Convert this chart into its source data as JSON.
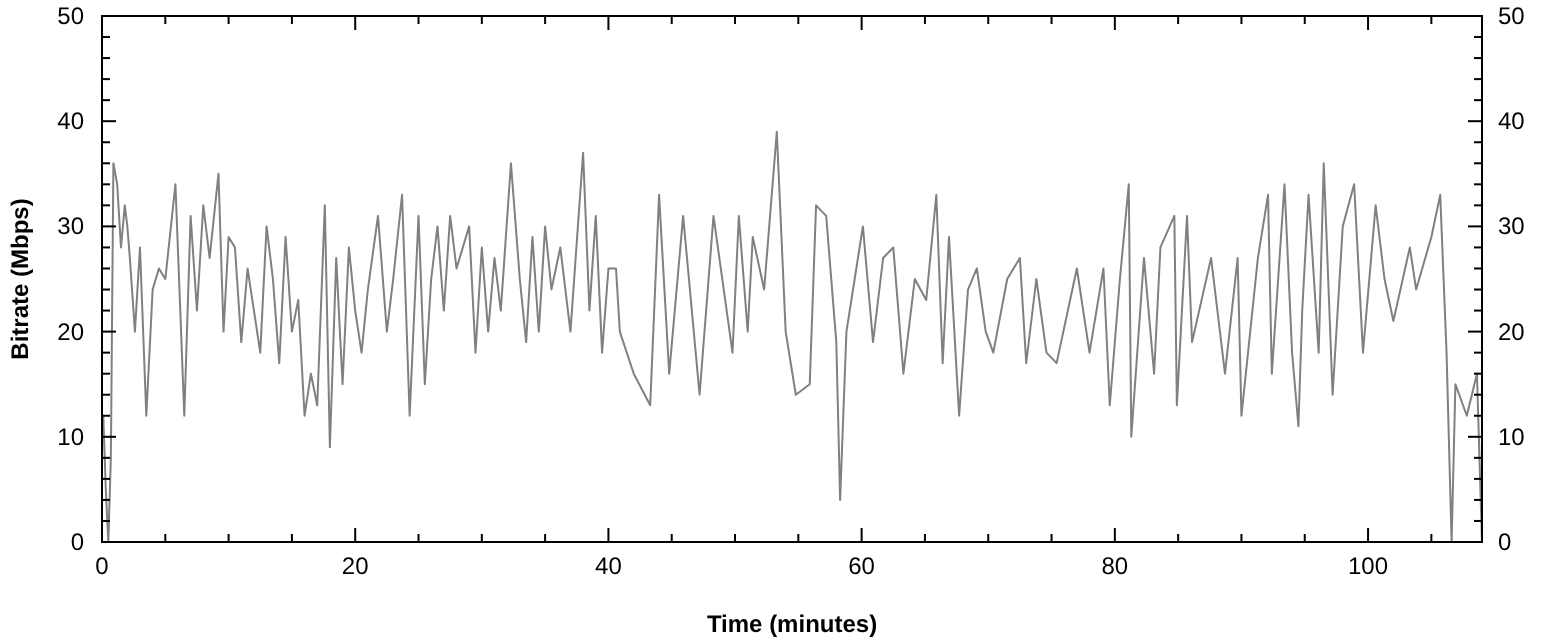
{
  "chart_data": {
    "type": "line",
    "xlabel": "Time (minutes)",
    "ylabel": "Bitrate (Mbps)",
    "xlim": [
      0,
      109
    ],
    "xticks": [
      0,
      {
        "value": 5,
        "label": null
      },
      {
        "value": 10,
        "label": null
      },
      {
        "value": 15,
        "label": null
      },
      20,
      {
        "value": 25,
        "label": null
      },
      {
        "value": 30,
        "label": null
      },
      {
        "value": 35,
        "label": null
      },
      40,
      {
        "value": 45,
        "label": null
      },
      {
        "value": 50,
        "label": null
      },
      {
        "value": 55,
        "label": null
      },
      60,
      {
        "value": 65,
        "label": null
      },
      {
        "value": 70,
        "label": null
      },
      {
        "value": 75,
        "label": null
      },
      80,
      {
        "value": 85,
        "label": null
      },
      {
        "value": 90,
        "label": null
      },
      {
        "value": 95,
        "label": null
      },
      100,
      {
        "value": 105,
        "label": null
      }
    ],
    "ylim": [
      0,
      50
    ],
    "yticks": [
      0,
      {
        "value": 2,
        "label": null
      },
      {
        "value": 4,
        "label": null
      },
      {
        "value": 6,
        "label": null
      },
      {
        "value": 8,
        "label": null
      },
      10,
      {
        "value": 12,
        "label": null
      },
      {
        "value": 14,
        "label": null
      },
      {
        "value": 16,
        "label": null
      },
      {
        "value": 18,
        "label": null
      },
      20,
      {
        "value": 22,
        "label": null
      },
      {
        "value": 24,
        "label": null
      },
      {
        "value": 26,
        "label": null
      },
      {
        "value": 28,
        "label": null
      },
      30,
      {
        "value": 32,
        "label": null
      },
      {
        "value": 34,
        "label": null
      },
      {
        "value": 36,
        "label": null
      },
      {
        "value": 38,
        "label": null
      },
      40,
      {
        "value": 42,
        "label": null
      },
      {
        "value": 44,
        "label": null
      },
      {
        "value": 46,
        "label": null
      },
      {
        "value": 48,
        "label": null
      },
      50
    ],
    "y2lim": [
      0,
      50
    ],
    "y2ticks": [
      0,
      {
        "value": 2,
        "label": null
      },
      {
        "value": 4,
        "label": null
      },
      {
        "value": 6,
        "label": null
      },
      {
        "value": 8,
        "label": null
      },
      10,
      {
        "value": 12,
        "label": null
      },
      {
        "value": 14,
        "label": null
      },
      {
        "value": 16,
        "label": null
      },
      {
        "value": 18,
        "label": null
      },
      20,
      {
        "value": 22,
        "label": null
      },
      {
        "value": 24,
        "label": null
      },
      {
        "value": 26,
        "label": null
      },
      {
        "value": 28,
        "label": null
      },
      30,
      {
        "value": 32,
        "label": null
      },
      {
        "value": 34,
        "label": null
      },
      {
        "value": 36,
        "label": null
      },
      {
        "value": 38,
        "label": null
      },
      40,
      {
        "value": 42,
        "label": null
      },
      {
        "value": 44,
        "label": null
      },
      {
        "value": 46,
        "label": null
      },
      {
        "value": 48,
        "label": null
      },
      50
    ],
    "grid": false,
    "marker": "none",
    "line_style": "solid",
    "series": [
      {
        "color": "#808080",
        "x": [
          0.1,
          0.3,
          0.5,
          0.7,
          0.9,
          1.2,
          1.5,
          1.8,
          2.0,
          2.2,
          2.6,
          3.0,
          3.5,
          4.0,
          4.5,
          5.0,
          5.8,
          6.5,
          7.0,
          7.5,
          8.0,
          8.5,
          9.2,
          9.6,
          10.0,
          10.5,
          11.0,
          11.5,
          12.0,
          12.5,
          13.0,
          13.5,
          14.0,
          14.5,
          15.0,
          15.5,
          16.0,
          16.5,
          17.0,
          17.6,
          18.0,
          18.5,
          19.0,
          19.5,
          20.0,
          20.5,
          21.0,
          21.8,
          22.5,
          23.0,
          23.7,
          24.3,
          25.0,
          25.5,
          26.0,
          26.5,
          27.0,
          27.5,
          28.0,
          29.0,
          29.5,
          30.0,
          30.5,
          31.0,
          31.5,
          32.3,
          33.0,
          33.5,
          34.0,
          34.5,
          35.0,
          35.5,
          36.2,
          37.0,
          38.0,
          38.5,
          39.0,
          39.5,
          40.0,
          40.6,
          40.9,
          42.0,
          43.3,
          44.0,
          44.8,
          45.9,
          47.2,
          48.3,
          49.8,
          50.3,
          51.0,
          51.4,
          52.3,
          53.3,
          54.0,
          54.8,
          55.9,
          56.4,
          57.2,
          58.0,
          58.3,
          58.8,
          60.1,
          60.9,
          61.7,
          62.5,
          63.3,
          64.2,
          65.1,
          65.9,
          66.4,
          66.9,
          67.7,
          68.4,
          69.1,
          69.8,
          70.4,
          71.5,
          72.5,
          73.0,
          73.8,
          74.6,
          75.4,
          77.0,
          78.0,
          79.1,
          79.6,
          80.4,
          81.1,
          81.3,
          82.3,
          83.1,
          83.6,
          84.7,
          84.9,
          85.7,
          86.1,
          87.6,
          88.7,
          89.7,
          90.0,
          91.3,
          92.1,
          92.4,
          93.4,
          94.0,
          94.5,
          94.8,
          95.3,
          96.1,
          96.5,
          97.2,
          98.0,
          98.9,
          99.6,
          100.6,
          101.3,
          102.0,
          103.3,
          103.8,
          105.0,
          105.7,
          106.2,
          106.6,
          106.9,
          107.8,
          108.6,
          109.0
        ],
        "values": [
          12,
          5,
          0,
          8,
          36,
          34,
          28,
          32,
          30,
          27,
          20,
          28,
          12,
          24,
          26,
          25,
          34,
          12,
          31,
          22,
          32,
          27,
          35,
          20,
          29,
          28,
          19,
          26,
          22,
          18,
          30,
          25,
          17,
          29,
          20,
          23,
          12,
          16,
          13,
          32,
          9,
          27,
          15,
          28,
          22,
          18,
          24,
          31,
          20,
          25,
          33,
          12,
          31,
          15,
          25,
          30,
          22,
          31,
          26,
          30,
          18,
          28,
          20,
          27,
          22,
          36,
          25,
          19,
          29,
          20,
          30,
          24,
          28,
          20,
          37,
          22,
          31,
          18,
          26,
          26,
          20,
          16,
          13,
          33,
          16,
          31,
          14,
          31,
          18,
          31,
          20,
          29,
          24,
          39,
          20,
          14,
          15,
          32,
          31,
          19,
          4,
          20,
          30,
          19,
          27,
          28,
          16,
          25,
          23,
          33,
          17,
          29,
          12,
          24,
          26,
          20,
          18,
          25,
          27,
          17,
          25,
          18,
          17,
          26,
          18,
          26,
          13,
          25,
          34,
          10,
          27,
          16,
          28,
          31,
          13,
          31,
          19,
          27,
          16,
          27,
          12,
          27,
          33,
          16,
          34,
          18,
          11,
          22,
          33,
          18,
          36,
          14,
          30,
          34,
          18,
          32,
          25,
          21,
          28,
          24,
          29,
          33,
          18,
          0,
          15,
          12,
          16,
          0
        ]
      }
    ]
  }
}
